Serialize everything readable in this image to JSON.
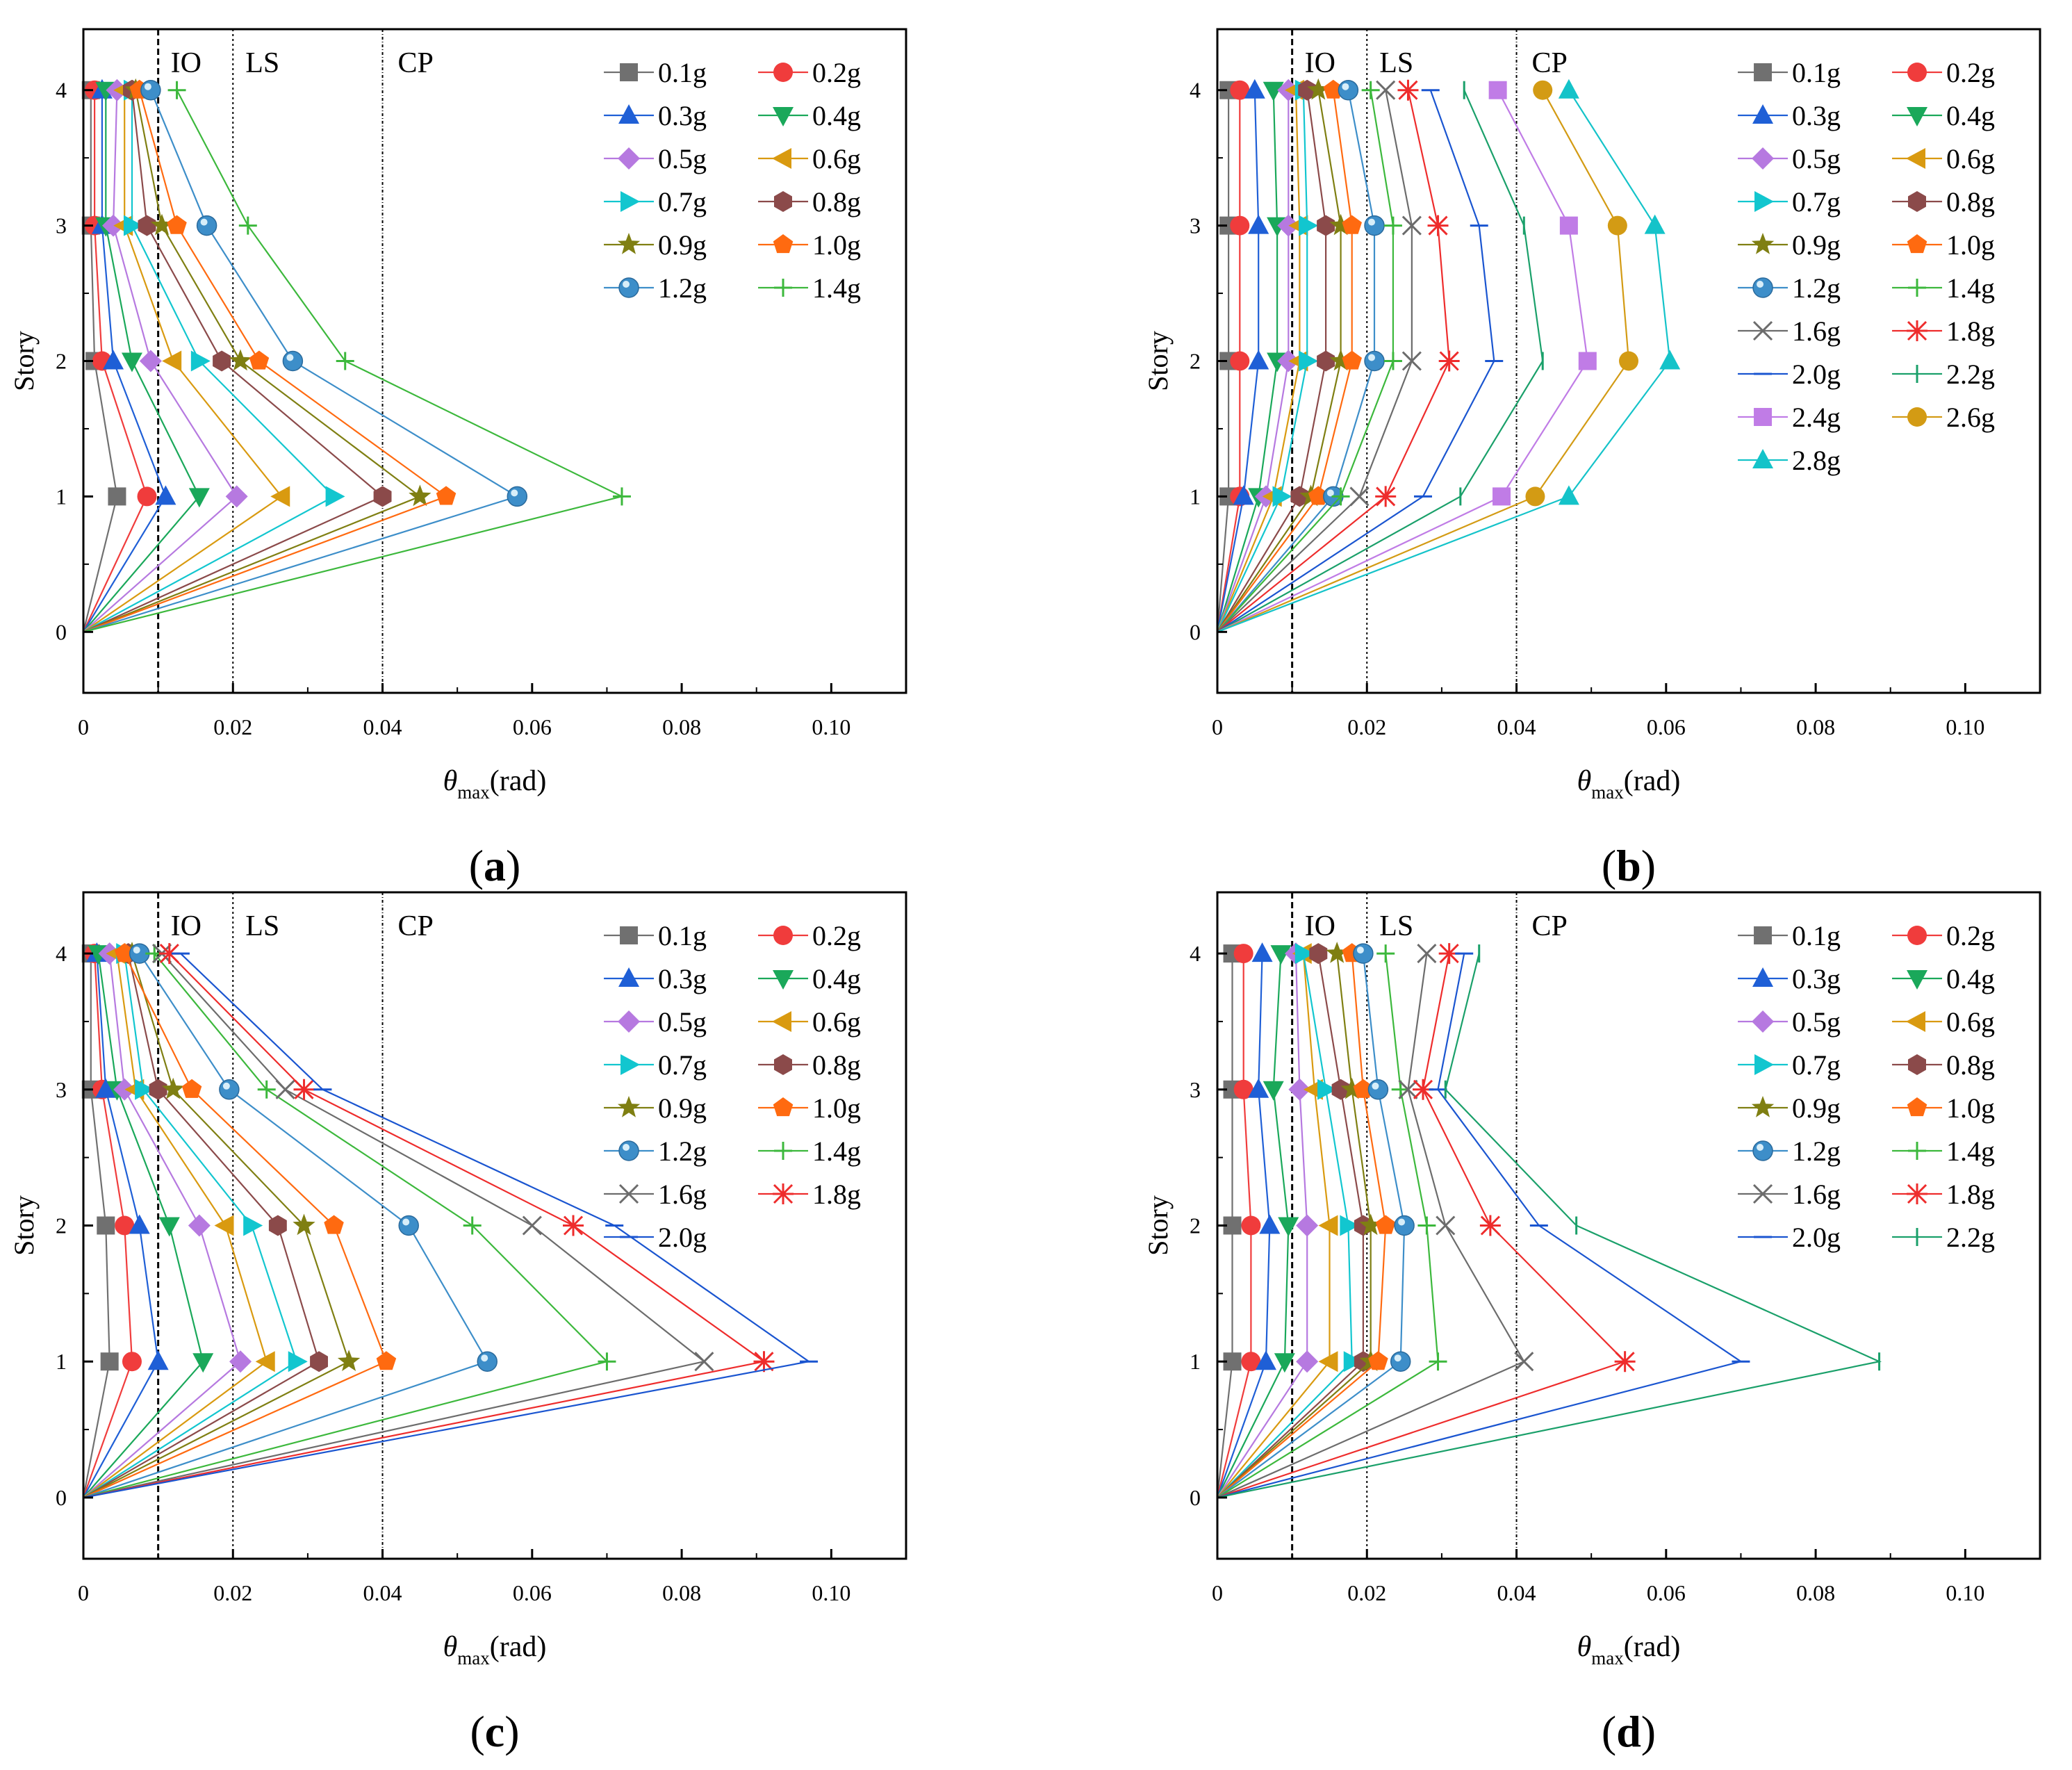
{
  "series_colors": {
    "0.1g": "#707070",
    "0.2g": "#f03c3c",
    "0.3g": "#1f5fd6",
    "0.4g": "#1aa85a",
    "0.5g": "#b679e0",
    "0.6g": "#d99a10",
    "0.7g": "#12c6cf",
    "0.8g": "#8b4a4a",
    "0.9g": "#7f7f12",
    "1.0g": "#ff6a10",
    "1.2g": "#3d8ec9",
    "1.4g": "#3cb83c",
    "1.6g": "#6c6c6c",
    "1.8g": "#ee2c2c",
    "2.0g": "#1a55d0",
    "2.2g": "#1aa06a",
    "2.4g": "#c07ce6",
    "2.6g": "#d39b14",
    "2.8g": "#14c3c9"
  },
  "series_markers": {
    "0.1g": "square",
    "0.2g": "circle",
    "0.3g": "triangle-up",
    "0.4g": "triangle-down",
    "0.5g": "diamond",
    "0.6g": "triangle-left",
    "0.7g": "triangle-right",
    "0.8g": "hexagon",
    "0.9g": "star",
    "1.0g": "pentagon",
    "1.2g": "sphere",
    "1.4g": "plus",
    "1.6g": "x",
    "1.8g": "asterisk",
    "2.0g": "dash",
    "2.2g": "vbar",
    "2.4g": "square",
    "2.6g": "circle",
    "2.8g": "triangle-up"
  },
  "chart_data": [
    {
      "type": "line",
      "panel_label": "(a)",
      "title": "",
      "xlabel_symbol": "θ",
      "xlabel_sub": "max",
      "xlabel_unit": "(rad)",
      "ylabel": "Story",
      "xlim": [
        0,
        0.11
      ],
      "ylim": [
        -0.45,
        4.45
      ],
      "x_ticks": [
        0,
        0.02,
        0.04,
        0.06,
        0.08,
        0.1
      ],
      "x_tick_labels": [
        "0",
        "0.02",
        "0.04",
        "0.06",
        "0.08",
        "0.10"
      ],
      "y_ticks": [
        0,
        1,
        2,
        3,
        4
      ],
      "y_tick_labels": [
        "0",
        "1",
        "2",
        "3",
        "4"
      ],
      "limit_lines": [
        {
          "label": "IO",
          "x": 0.01
        },
        {
          "label": "LS",
          "x": 0.02
        },
        {
          "label": "CP",
          "x": 0.04
        }
      ],
      "legend_position": "top-right",
      "stories": [
        0,
        1,
        2,
        3,
        4
      ],
      "series": [
        {
          "name": "0.1g",
          "values": [
            0,
            0.0045,
            0.0015,
            0.001,
            0.001
          ]
        },
        {
          "name": "0.2g",
          "values": [
            0,
            0.0085,
            0.0025,
            0.0015,
            0.0015
          ]
        },
        {
          "name": "0.3g",
          "values": [
            0,
            0.011,
            0.004,
            0.0025,
            0.0025
          ]
        },
        {
          "name": "0.4g",
          "values": [
            0,
            0.0155,
            0.0065,
            0.003,
            0.003
          ]
        },
        {
          "name": "0.5g",
          "values": [
            0,
            0.0205,
            0.009,
            0.004,
            0.0045
          ]
        },
        {
          "name": "0.6g",
          "values": [
            0,
            0.0265,
            0.012,
            0.0055,
            0.0055
          ]
        },
        {
          "name": "0.7g",
          "values": [
            0,
            0.0335,
            0.0155,
            0.0065,
            0.0065
          ]
        },
        {
          "name": "0.8g",
          "values": [
            0,
            0.04,
            0.0185,
            0.0085,
            0.0065
          ]
        },
        {
          "name": "0.9g",
          "values": [
            0,
            0.045,
            0.021,
            0.0105,
            0.007
          ]
        },
        {
          "name": "1.0g",
          "values": [
            0,
            0.0485,
            0.0235,
            0.0125,
            0.0075
          ]
        },
        {
          "name": "1.2g",
          "values": [
            0,
            0.058,
            0.028,
            0.0165,
            0.009
          ]
        },
        {
          "name": "1.4g",
          "values": [
            0,
            0.072,
            0.035,
            0.022,
            0.0125
          ]
        }
      ]
    },
    {
      "type": "line",
      "panel_label": "(b)",
      "title": "",
      "xlabel_symbol": "θ",
      "xlabel_sub": "max",
      "xlabel_unit": "(rad)",
      "ylabel": "Story",
      "xlim": [
        0,
        0.11
      ],
      "ylim": [
        -0.45,
        4.45
      ],
      "x_ticks": [
        0,
        0.02,
        0.04,
        0.06,
        0.08,
        0.1
      ],
      "x_tick_labels": [
        "0",
        "0.02",
        "0.04",
        "0.06",
        "0.08",
        "0.10"
      ],
      "y_ticks": [
        0,
        1,
        2,
        3,
        4
      ],
      "y_tick_labels": [
        "0",
        "1",
        "2",
        "3",
        "4"
      ],
      "limit_lines": [
        {
          "label": "IO",
          "x": 0.01
        },
        {
          "label": "LS",
          "x": 0.02
        },
        {
          "label": "CP",
          "x": 0.04
        }
      ],
      "legend_position": "top-right",
      "stories": [
        0,
        1,
        2,
        3,
        4
      ],
      "series": [
        {
          "name": "0.1g",
          "values": [
            0,
            0.0015,
            0.0015,
            0.0015,
            0.0015
          ]
        },
        {
          "name": "0.2g",
          "values": [
            0,
            0.003,
            0.003,
            0.003,
            0.003
          ]
        },
        {
          "name": "0.3g",
          "values": [
            0,
            0.0035,
            0.0055,
            0.0055,
            0.005
          ]
        },
        {
          "name": "0.4g",
          "values": [
            0,
            0.0055,
            0.008,
            0.008,
            0.0075
          ]
        },
        {
          "name": "0.5g",
          "values": [
            0,
            0.0065,
            0.0095,
            0.0095,
            0.0095
          ]
        },
        {
          "name": "0.6g",
          "values": [
            0,
            0.0075,
            0.011,
            0.011,
            0.0105
          ]
        },
        {
          "name": "0.7g",
          "values": [
            0,
            0.0085,
            0.012,
            0.012,
            0.0115
          ]
        },
        {
          "name": "0.8g",
          "values": [
            0,
            0.011,
            0.0145,
            0.0145,
            0.012
          ]
        },
        {
          "name": "0.9g",
          "values": [
            0,
            0.0125,
            0.0165,
            0.0165,
            0.0135
          ]
        },
        {
          "name": "1.0g",
          "values": [
            0,
            0.0135,
            0.018,
            0.018,
            0.0155
          ]
        },
        {
          "name": "1.2g",
          "values": [
            0,
            0.0155,
            0.021,
            0.021,
            0.0175
          ]
        },
        {
          "name": "1.4g",
          "values": [
            0,
            0.0165,
            0.0235,
            0.0235,
            0.0205
          ]
        },
        {
          "name": "1.6g",
          "values": [
            0,
            0.019,
            0.026,
            0.026,
            0.0225
          ]
        },
        {
          "name": "1.8g",
          "values": [
            0,
            0.0225,
            0.031,
            0.0295,
            0.0255
          ]
        },
        {
          "name": "2.0g",
          "values": [
            0,
            0.0275,
            0.037,
            0.035,
            0.0285
          ]
        },
        {
          "name": "2.2g",
          "values": [
            0,
            0.0325,
            0.0435,
            0.041,
            0.033
          ]
        },
        {
          "name": "2.4g",
          "values": [
            0,
            0.038,
            0.0495,
            0.047,
            0.0375
          ]
        },
        {
          "name": "2.6g",
          "values": [
            0,
            0.0425,
            0.055,
            0.0535,
            0.0435
          ]
        },
        {
          "name": "2.8g",
          "values": [
            0,
            0.047,
            0.0605,
            0.0585,
            0.047
          ]
        }
      ]
    },
    {
      "type": "line",
      "panel_label": "(c)",
      "title": "",
      "xlabel_symbol": "θ",
      "xlabel_sub": "max",
      "xlabel_unit": "(rad)",
      "ylabel": "Story",
      "xlim": [
        0,
        0.11
      ],
      "ylim": [
        -0.45,
        4.45
      ],
      "x_ticks": [
        0,
        0.02,
        0.04,
        0.06,
        0.08,
        0.1
      ],
      "x_tick_labels": [
        "0",
        "0.02",
        "0.04",
        "0.06",
        "0.08",
        "0.10"
      ],
      "y_ticks": [
        0,
        1,
        2,
        3,
        4
      ],
      "y_tick_labels": [
        "0",
        "1",
        "2",
        "3",
        "4"
      ],
      "limit_lines": [
        {
          "label": "IO",
          "x": 0.01
        },
        {
          "label": "LS",
          "x": 0.02
        },
        {
          "label": "CP",
          "x": 0.04
        }
      ],
      "legend_position": "top-right",
      "stories": [
        0,
        1,
        2,
        3,
        4
      ],
      "series": [
        {
          "name": "0.1g",
          "values": [
            0,
            0.0035,
            0.003,
            0.001,
            0.001
          ]
        },
        {
          "name": "0.2g",
          "values": [
            0,
            0.0065,
            0.0055,
            0.0025,
            0.0015
          ]
        },
        {
          "name": "0.3g",
          "values": [
            0,
            0.01,
            0.0075,
            0.003,
            0.0018
          ]
        },
        {
          "name": "0.4g",
          "values": [
            0,
            0.016,
            0.0115,
            0.0045,
            0.002
          ]
        },
        {
          "name": "0.5g",
          "values": [
            0,
            0.021,
            0.0155,
            0.0055,
            0.0035
          ]
        },
        {
          "name": "0.6g",
          "values": [
            0,
            0.0245,
            0.019,
            0.007,
            0.0045
          ]
        },
        {
          "name": "0.7g",
          "values": [
            0,
            0.0285,
            0.0225,
            0.008,
            0.0055
          ]
        },
        {
          "name": "0.8g",
          "values": [
            0,
            0.0315,
            0.026,
            0.01,
            0.006
          ]
        },
        {
          "name": "0.9g",
          "values": [
            0,
            0.0355,
            0.0295,
            0.012,
            0.0065
          ]
        },
        {
          "name": "1.0g",
          "values": [
            0,
            0.0405,
            0.0335,
            0.0145,
            0.0055
          ]
        },
        {
          "name": "1.2g",
          "values": [
            0,
            0.054,
            0.0435,
            0.0195,
            0.0075
          ]
        },
        {
          "name": "1.4g",
          "values": [
            0,
            0.07,
            0.052,
            0.0245,
            0.0095
          ]
        },
        {
          "name": "1.6g",
          "values": [
            0,
            0.083,
            0.06,
            0.027,
            0.0105
          ]
        },
        {
          "name": "1.8g",
          "values": [
            0,
            0.091,
            0.0655,
            0.0295,
            0.0115
          ]
        },
        {
          "name": "2.0g",
          "values": [
            0,
            0.097,
            0.071,
            0.032,
            0.013
          ]
        }
      ]
    },
    {
      "type": "line",
      "panel_label": "(d)",
      "title": "",
      "xlabel_symbol": "θ",
      "xlabel_sub": "max",
      "xlabel_unit": "(rad)",
      "ylabel": "Story",
      "xlim": [
        0,
        0.11
      ],
      "ylim": [
        -0.45,
        4.45
      ],
      "x_ticks": [
        0,
        0.02,
        0.04,
        0.06,
        0.08,
        0.1
      ],
      "x_tick_labels": [
        "0",
        "0.02",
        "0.04",
        "0.06",
        "0.08",
        "0.10"
      ],
      "y_ticks": [
        0,
        1,
        2,
        3,
        4
      ],
      "y_tick_labels": [
        "0",
        "1",
        "2",
        "3",
        "4"
      ],
      "limit_lines": [
        {
          "label": "IO",
          "x": 0.01
        },
        {
          "label": "LS",
          "x": 0.02
        },
        {
          "label": "CP",
          "x": 0.04
        }
      ],
      "legend_position": "top-right",
      "stories": [
        0,
        1,
        2,
        3,
        4
      ],
      "series": [
        {
          "name": "0.1g",
          "values": [
            0,
            0.002,
            0.002,
            0.002,
            0.002
          ]
        },
        {
          "name": "0.2g",
          "values": [
            0,
            0.0045,
            0.0045,
            0.0035,
            0.0035
          ]
        },
        {
          "name": "0.3g",
          "values": [
            0,
            0.0065,
            0.007,
            0.0055,
            0.006
          ]
        },
        {
          "name": "0.4g",
          "values": [
            0,
            0.009,
            0.0095,
            0.0075,
            0.0085
          ]
        },
        {
          "name": "0.5g",
          "values": [
            0,
            0.012,
            0.012,
            0.011,
            0.0105
          ]
        },
        {
          "name": "0.6g",
          "values": [
            0,
            0.015,
            0.015,
            0.013,
            0.0115
          ]
        },
        {
          "name": "0.7g",
          "values": [
            0,
            0.018,
            0.0175,
            0.0145,
            0.0115
          ]
        },
        {
          "name": "0.8g",
          "values": [
            0,
            0.0195,
            0.0195,
            0.0165,
            0.0135
          ]
        },
        {
          "name": "0.9g",
          "values": [
            0,
            0.0205,
            0.0205,
            0.018,
            0.016
          ]
        },
        {
          "name": "1.0g",
          "values": [
            0,
            0.0215,
            0.0225,
            0.0195,
            0.018
          ]
        },
        {
          "name": "1.2g",
          "values": [
            0,
            0.0245,
            0.025,
            0.0215,
            0.0195
          ]
        },
        {
          "name": "1.4g",
          "values": [
            0,
            0.0295,
            0.028,
            0.0245,
            0.0225
          ]
        },
        {
          "name": "1.6g",
          "values": [
            0,
            0.041,
            0.0305,
            0.0255,
            0.028
          ]
        },
        {
          "name": "1.8g",
          "values": [
            0,
            0.0545,
            0.0365,
            0.0275,
            0.031
          ]
        },
        {
          "name": "2.0g",
          "values": [
            0,
            0.07,
            0.043,
            0.0295,
            0.033
          ]
        },
        {
          "name": "2.2g",
          "values": [
            0,
            0.0885,
            0.048,
            0.0305,
            0.035
          ]
        }
      ]
    }
  ]
}
